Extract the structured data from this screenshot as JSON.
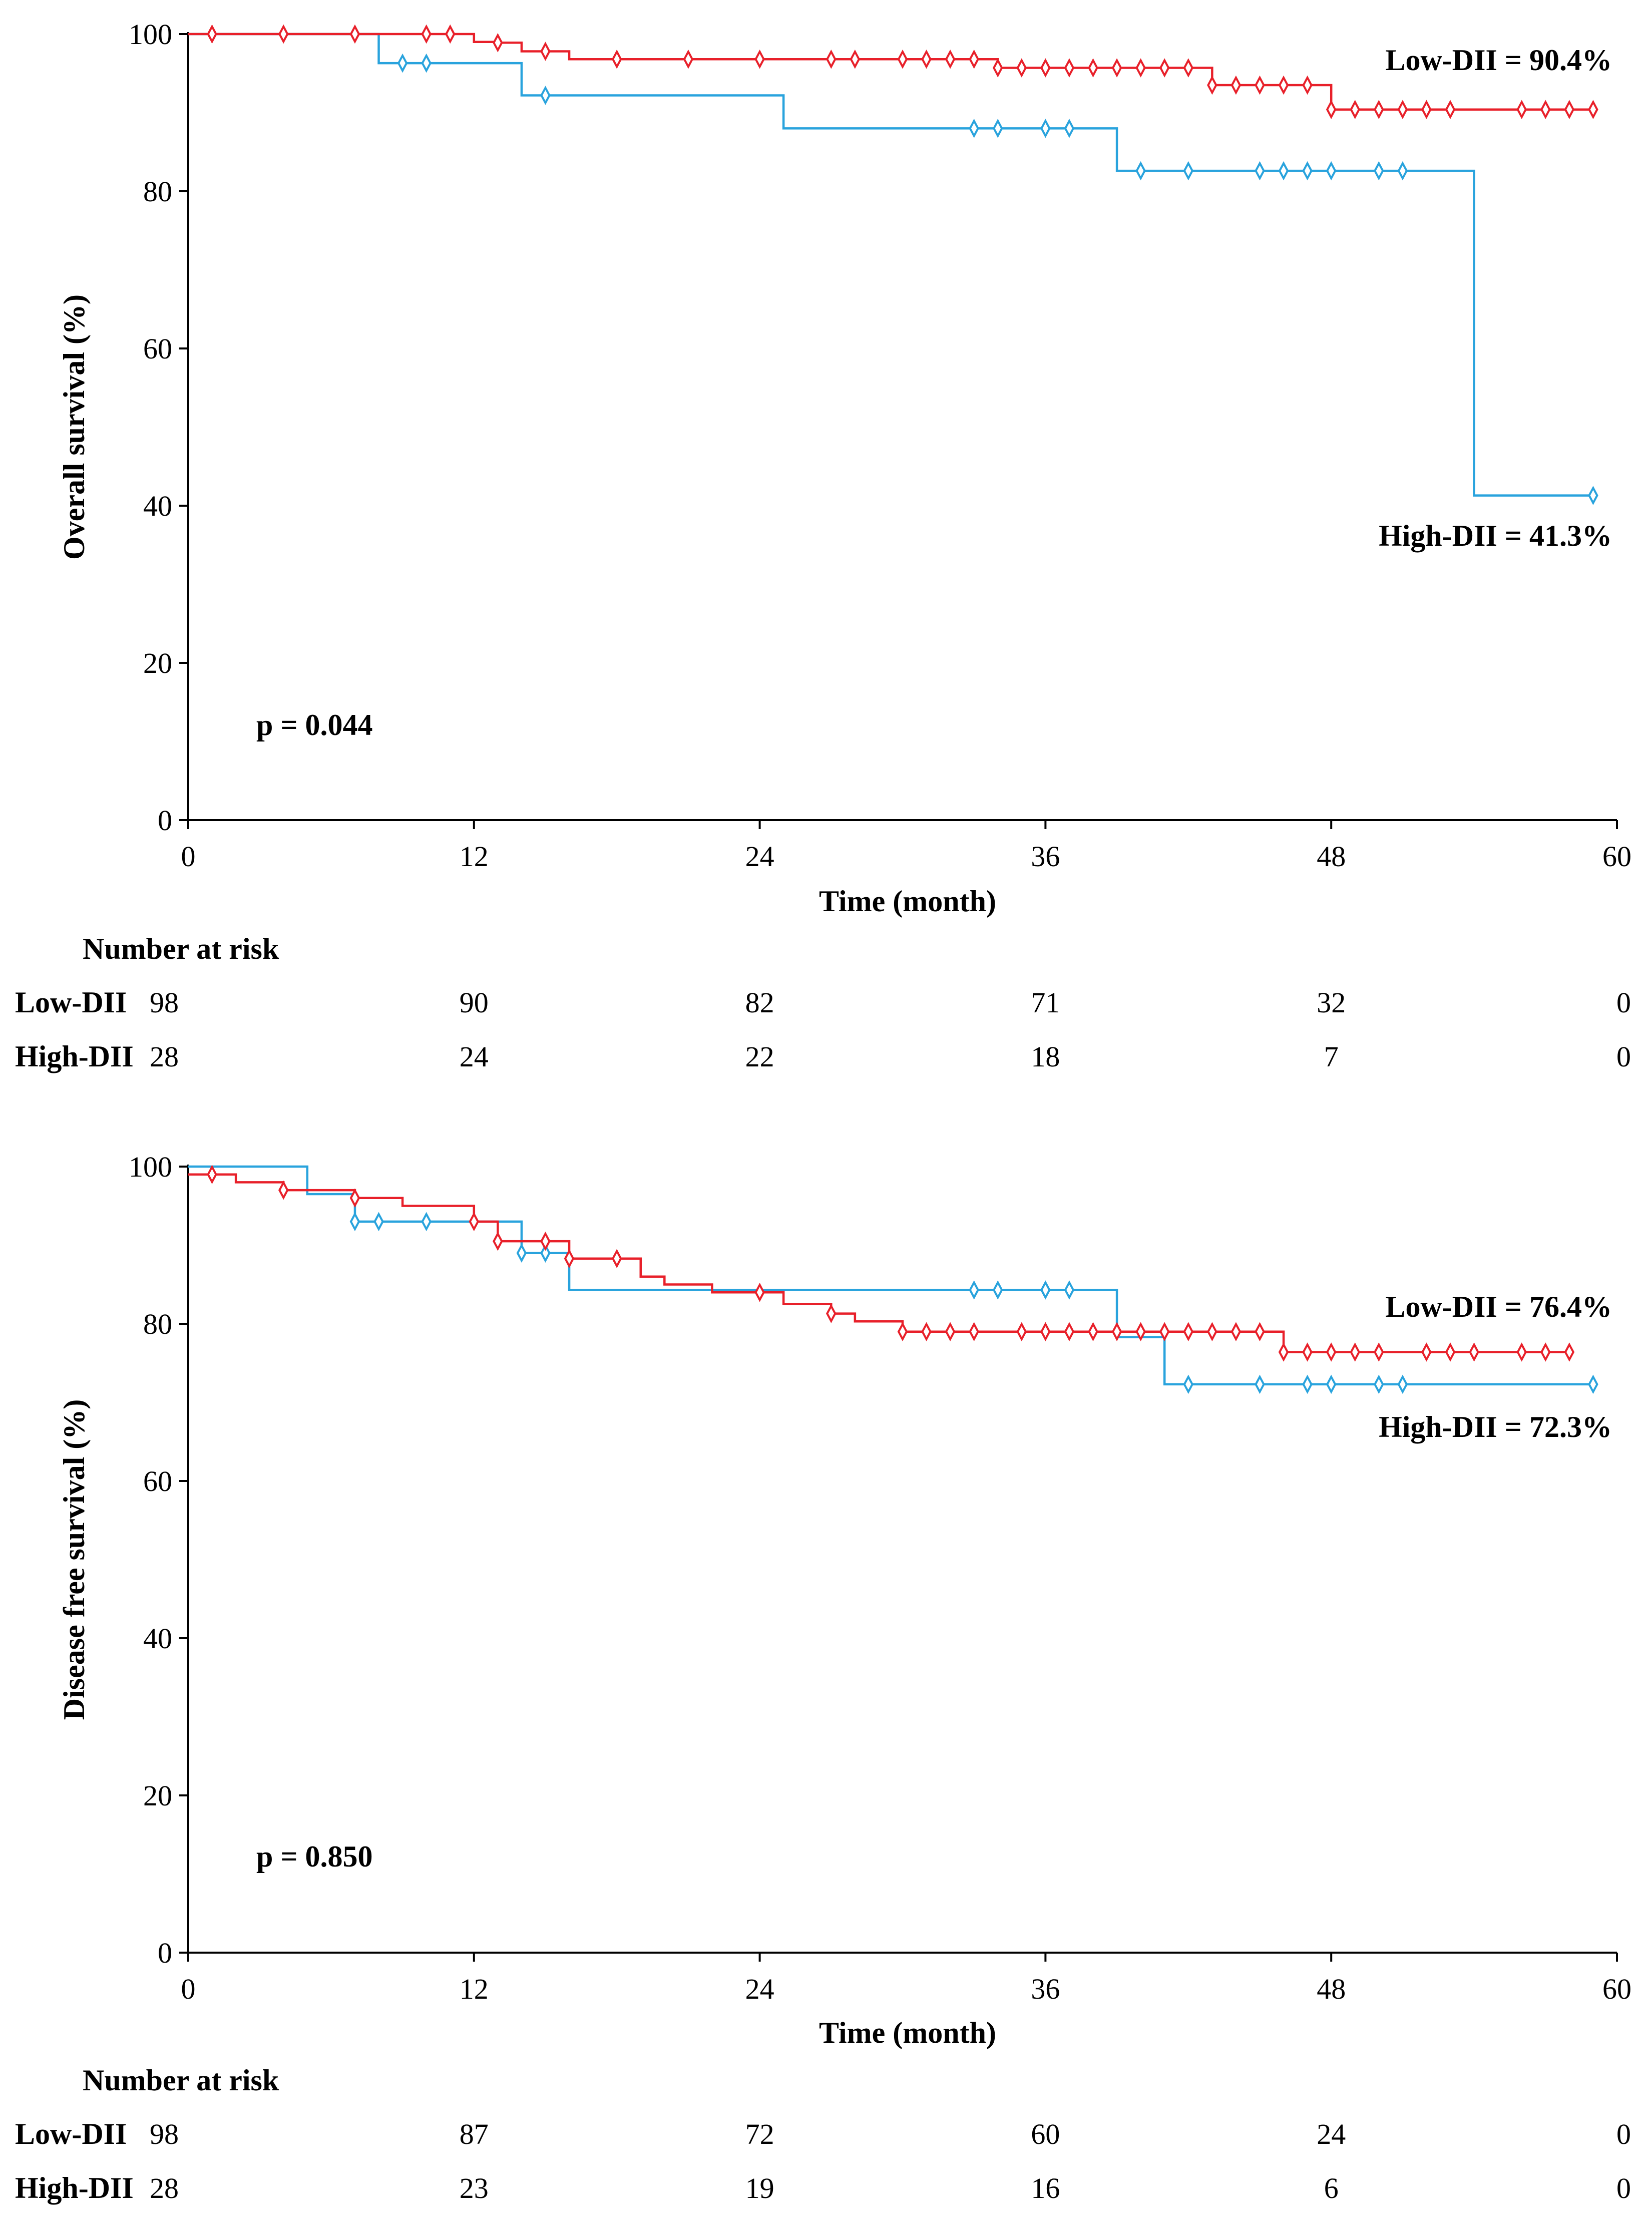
{
  "chart_data": [
    {
      "type": "line",
      "subtype": "kaplan-meier",
      "ylabel": "Overall survival (%)",
      "xlabel": "Time (month)",
      "xlim": [
        0,
        60
      ],
      "ylim": [
        0,
        100
      ],
      "xticks": [
        0,
        12,
        24,
        36,
        48,
        60
      ],
      "yticks": [
        0,
        20,
        40,
        60,
        80,
        100
      ],
      "grid": false,
      "p_value": "p = 0.044",
      "series": [
        {
          "name": "Low-DII",
          "color": "#e8202a",
          "end_label": "Low-DII = 90.4%",
          "steps": [
            [
              0,
              100
            ],
            [
              12,
              99
            ],
            [
              13,
              98.9
            ],
            [
              14,
              97.8
            ],
            [
              16,
              96.8
            ],
            [
              34,
              95.7
            ],
            [
              43,
              93.5
            ],
            [
              48,
              90.4
            ],
            [
              59,
              90.4
            ]
          ],
          "censored": [
            [
              1,
              100
            ],
            [
              4,
              100
            ],
            [
              7,
              100
            ],
            [
              10,
              100
            ],
            [
              11,
              100
            ],
            [
              13,
              98.9
            ],
            [
              15,
              97.8
            ],
            [
              18,
              96.8
            ],
            [
              21,
              96.8
            ],
            [
              24,
              96.8
            ],
            [
              27,
              96.8
            ],
            [
              28,
              96.8
            ],
            [
              30,
              96.8
            ],
            [
              31,
              96.8
            ],
            [
              32,
              96.8
            ],
            [
              33,
              96.8
            ],
            [
              34,
              95.7
            ],
            [
              35,
              95.7
            ],
            [
              36,
              95.7
            ],
            [
              37,
              95.7
            ],
            [
              38,
              95.7
            ],
            [
              39,
              95.7
            ],
            [
              40,
              95.7
            ],
            [
              41,
              95.7
            ],
            [
              42,
              95.7
            ],
            [
              43,
              93.5
            ],
            [
              44,
              93.5
            ],
            [
              45,
              93.5
            ],
            [
              46,
              93.5
            ],
            [
              47,
              93.5
            ],
            [
              48,
              90.4
            ],
            [
              49,
              90.4
            ],
            [
              50,
              90.4
            ],
            [
              51,
              90.4
            ],
            [
              52,
              90.4
            ],
            [
              53,
              90.4
            ],
            [
              56,
              90.4
            ],
            [
              57,
              90.4
            ],
            [
              58,
              90.4
            ],
            [
              59,
              90.4
            ]
          ]
        },
        {
          "name": "High-DII",
          "color": "#29a3dd",
          "end_label": "High-DII = 41.3%",
          "steps": [
            [
              0,
              100
            ],
            [
              8,
              96.3
            ],
            [
              14,
              92.2
            ],
            [
              25,
              88
            ],
            [
              39,
              82.6
            ],
            [
              54,
              41.3
            ],
            [
              59,
              41.3
            ]
          ],
          "censored": [
            [
              9,
              96.3
            ],
            [
              10,
              96.3
            ],
            [
              15,
              92.2
            ],
            [
              33,
              88
            ],
            [
              34,
              88
            ],
            [
              36,
              88
            ],
            [
              37,
              88
            ],
            [
              40,
              82.6
            ],
            [
              42,
              82.6
            ],
            [
              45,
              82.6
            ],
            [
              46,
              82.6
            ],
            [
              47,
              82.6
            ],
            [
              48,
              82.6
            ],
            [
              50,
              82.6
            ],
            [
              51,
              82.6
            ],
            [
              59,
              41.3
            ]
          ]
        }
      ],
      "risk_table": {
        "title": "Number at risk",
        "times": [
          0,
          12,
          24,
          36,
          48,
          60
        ],
        "rows": [
          {
            "label": "Low-DII",
            "counts": [
              "98",
              "90",
              "82",
              "71",
              "32",
              "0"
            ]
          },
          {
            "label": "High-DII",
            "counts": [
              "28",
              "24",
              "22",
              "18",
              "7",
              "0"
            ]
          }
        ]
      }
    },
    {
      "type": "line",
      "subtype": "kaplan-meier",
      "ylabel": "Disease free survival (%)",
      "xlabel": "Time (month)",
      "xlim": [
        0,
        60
      ],
      "ylim": [
        0,
        100
      ],
      "xticks": [
        0,
        12,
        24,
        36,
        48,
        60
      ],
      "yticks": [
        0,
        20,
        40,
        60,
        80,
        100
      ],
      "grid": false,
      "p_value": "p = 0.850",
      "series": [
        {
          "name": "Low-DII",
          "color": "#e8202a",
          "end_label": "Low-DII = 76.4%",
          "steps": [
            [
              0,
              99
            ],
            [
              2,
              98
            ],
            [
              4,
              97
            ],
            [
              7,
              96
            ],
            [
              9,
              95
            ],
            [
              12,
              93
            ],
            [
              13,
              90.5
            ],
            [
              16,
              88.3
            ],
            [
              19,
              86
            ],
            [
              20,
              85
            ],
            [
              22,
              84
            ],
            [
              25,
              82.5
            ],
            [
              27,
              81.3
            ],
            [
              28,
              80.3
            ],
            [
              30,
              79
            ],
            [
              39,
              79
            ],
            [
              46,
              76.4
            ],
            [
              58,
              76.4
            ]
          ],
          "censored": [
            [
              1,
              99
            ],
            [
              4,
              97
            ],
            [
              7,
              96
            ],
            [
              12,
              93
            ],
            [
              13,
              90.5
            ],
            [
              15,
              90.5
            ],
            [
              16,
              88.3
            ],
            [
              18,
              88.3
            ],
            [
              24,
              84
            ],
            [
              27,
              81.3
            ],
            [
              30,
              79
            ],
            [
              31,
              79
            ],
            [
              32,
              79
            ],
            [
              33,
              79
            ],
            [
              35,
              79
            ],
            [
              36,
              79
            ],
            [
              37,
              79
            ],
            [
              38,
              79
            ],
            [
              39,
              79
            ],
            [
              40,
              79
            ],
            [
              41,
              79
            ],
            [
              42,
              79
            ],
            [
              43,
              79
            ],
            [
              44,
              79
            ],
            [
              45,
              79
            ],
            [
              46,
              76.4
            ],
            [
              47,
              76.4
            ],
            [
              48,
              76.4
            ],
            [
              49,
              76.4
            ],
            [
              50,
              76.4
            ],
            [
              52,
              76.4
            ],
            [
              53,
              76.4
            ],
            [
              54,
              76.4
            ],
            [
              56,
              76.4
            ],
            [
              57,
              76.4
            ],
            [
              58,
              76.4
            ]
          ]
        },
        {
          "name": "High-DII",
          "color": "#29a3dd",
          "end_label": "High-DII = 72.3%",
          "steps": [
            [
              0,
              100
            ],
            [
              5,
              96.5
            ],
            [
              7,
              93
            ],
            [
              12,
              93
            ],
            [
              14,
              89
            ],
            [
              16,
              84.3
            ],
            [
              39,
              78.3
            ],
            [
              41,
              72.3
            ],
            [
              59,
              72.3
            ]
          ],
          "censored": [
            [
              7,
              93
            ],
            [
              8,
              93
            ],
            [
              10,
              93
            ],
            [
              14,
              89
            ],
            [
              15,
              89
            ],
            [
              33,
              84.3
            ],
            [
              34,
              84.3
            ],
            [
              36,
              84.3
            ],
            [
              37,
              84.3
            ],
            [
              42,
              72.3
            ],
            [
              45,
              72.3
            ],
            [
              47,
              72.3
            ],
            [
              48,
              72.3
            ],
            [
              50,
              72.3
            ],
            [
              51,
              72.3
            ],
            [
              59,
              72.3
            ]
          ]
        }
      ],
      "risk_table": {
        "title": "Number at risk",
        "times": [
          0,
          12,
          24,
          36,
          48,
          60
        ],
        "rows": [
          {
            "label": "Low-DII",
            "counts": [
              "98",
              "87",
              "72",
              "60",
              "24",
              "0"
            ]
          },
          {
            "label": "High-DII",
            "counts": [
              "28",
              "23",
              "19",
              "16",
              "6",
              "0"
            ]
          }
        ]
      }
    }
  ]
}
